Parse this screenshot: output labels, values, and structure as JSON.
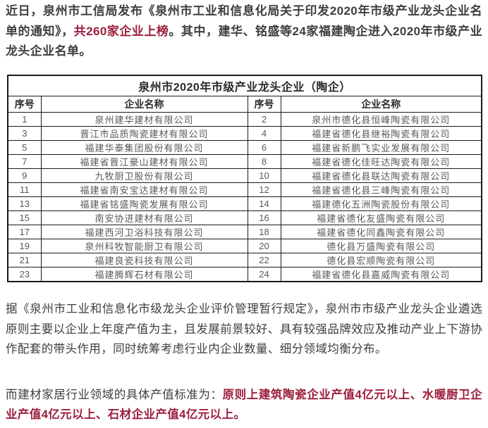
{
  "page": {
    "background": "#ffffff",
    "text_color": "#3e3e3e",
    "accent_red": "#9d1f3d",
    "table_text_color": "#595959",
    "border_color": "#1a1a1a"
  },
  "intro": {
    "segments": [
      {
        "text": "近日，泉州市工信局发布《泉州市工业和信息化局关于印发2020年市级产业龙头企业名单的通知》，",
        "style": "normal"
      },
      {
        "text": "共260家企业上榜",
        "style": "red"
      },
      {
        "text": "。其中，建华、铭盛等24家福建陶企进入2020年市级产业龙头企业名单。",
        "style": "normal"
      }
    ]
  },
  "table": {
    "title": "泉州市2020年市级产业龙头企业（陶企）",
    "headers": [
      "序号",
      "企业名称",
      "序号",
      "企业名称"
    ],
    "rows": [
      [
        "1",
        "泉州建华建材有限公司",
        "2",
        "泉州市德化县恒峰陶瓷有限公司"
      ],
      [
        "3",
        "晋江市品质陶瓷建材有限公司",
        "4",
        "福建省德化县继裕陶瓷有限公司"
      ],
      [
        "5",
        "福建华泰集团股份有限公司",
        "6",
        "福建省新鹏飞实业发展有限公司"
      ],
      [
        "7",
        "福建省晋江豪山建材有限公司",
        "8",
        "福建省德化佳旺达陶瓷有限公司"
      ],
      [
        "9",
        "九牧厨卫股份有限公司",
        "10",
        "福建省德化县联达陶瓷有限公司"
      ],
      [
        "11",
        "福建省南安宝达建材有限公司",
        "12",
        "福建省德化县三峰陶瓷有限公司"
      ],
      [
        "13",
        "福建省铭盛陶瓷发展有限公司",
        "14",
        "福建德化五洲陶瓷股份有限公司"
      ],
      [
        "15",
        "南安协进建材有限公司",
        "16",
        "福建省德化友盛陶瓷有限公司"
      ],
      [
        "17",
        "福建西河卫浴科技有限公司",
        "18",
        "福建省德化同鑫陶瓷有限公司"
      ],
      [
        "19",
        "泉州科牧智能厨卫有限公司",
        "20",
        "德化县万盛陶瓷有限公司"
      ],
      [
        "21",
        "福建良瓷科技有限公司",
        "22",
        "德化县宏顺陶瓷有限公司"
      ],
      [
        "23",
        "福建腾辉石材有限公司",
        "24",
        "福建省德化县嘉威陶瓷有限公司"
      ]
    ]
  },
  "para2": {
    "segments": [
      {
        "text": "据《泉州市工业和信息化市级龙头企业评价管理暂行规定》，泉州市市级产业龙头企业遴选原则主要以企业上年度产值为主，且发展前景较好、具有较强品牌效应及推动产业上下游协作配套的带头作用，同时统筹考虑行业内企业数量、细分领域均衡分布。",
        "style": "normal"
      }
    ]
  },
  "para3": {
    "segments": [
      {
        "text": "而建材家居行业领域的具体产值标准为：",
        "style": "normal"
      },
      {
        "text": "原则上建筑陶瓷企业产值4亿元以上、水暖厨卫企业产值4亿元以上、石材企业产值4亿元以上。",
        "style": "red"
      }
    ]
  }
}
